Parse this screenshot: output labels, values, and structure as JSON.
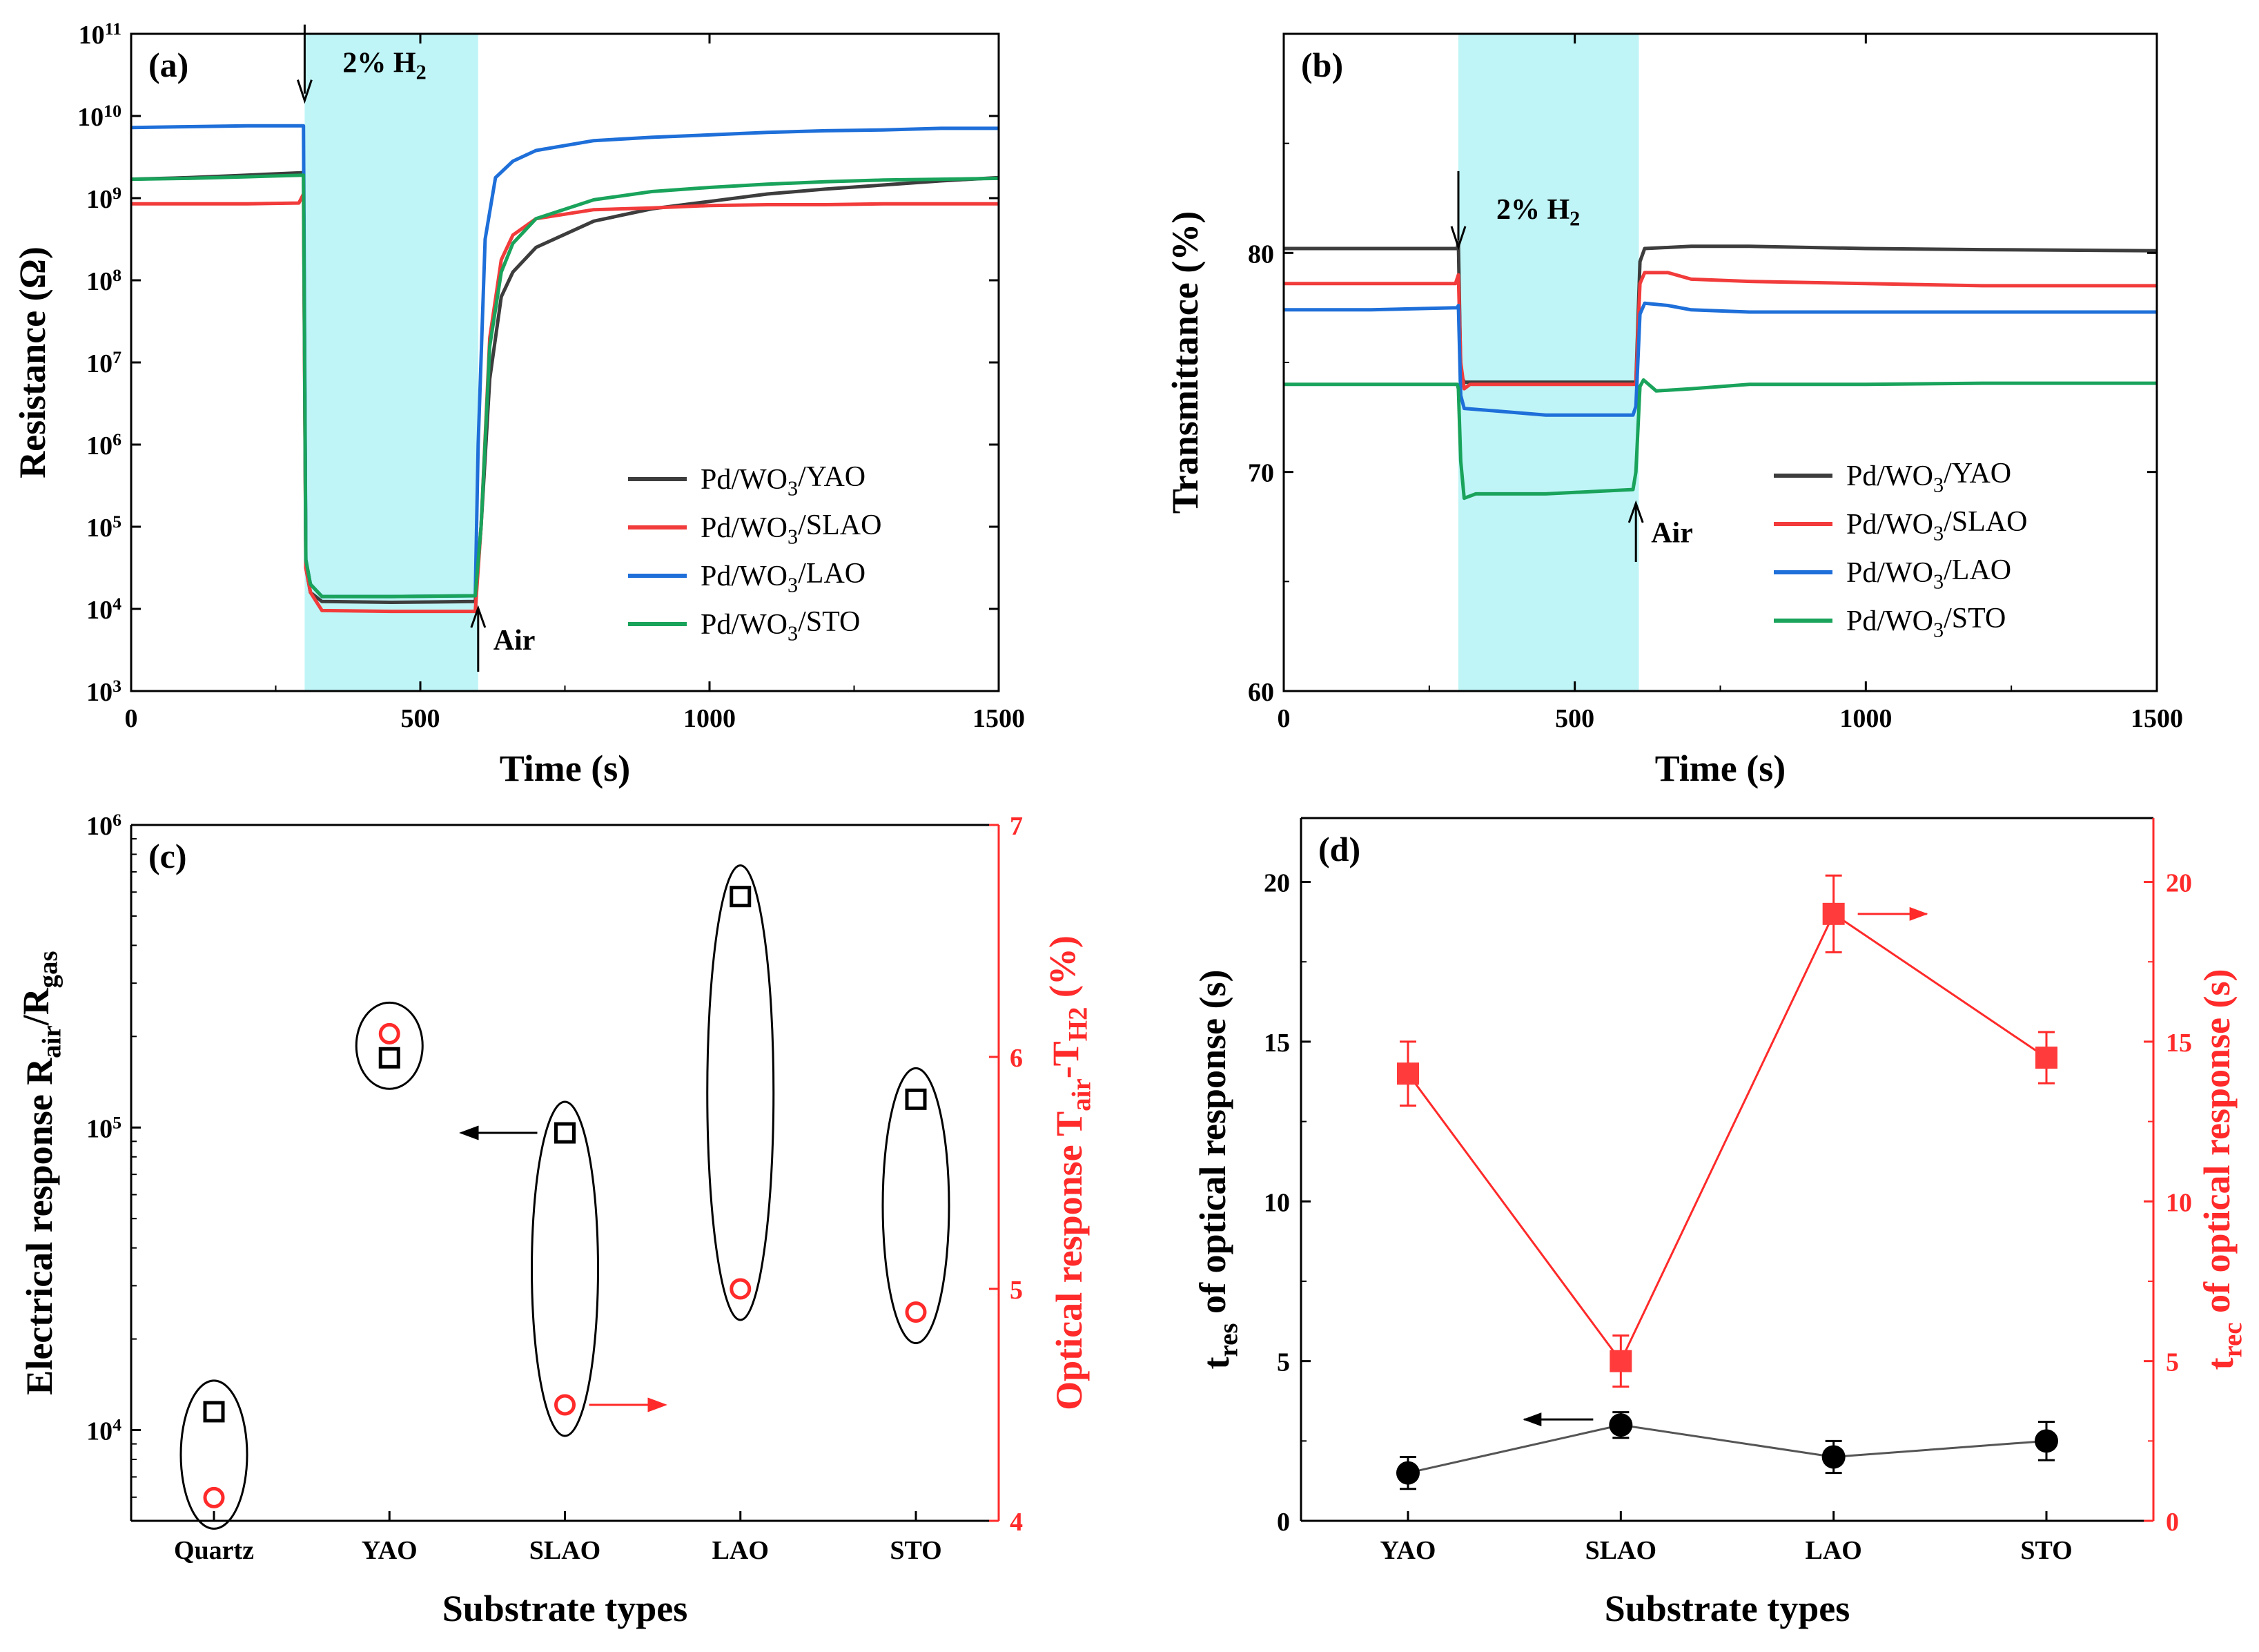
{
  "figure": {
    "panels": [
      "(a)",
      "(b)",
      "(c)",
      "(d)"
    ]
  },
  "chart_data": [
    {
      "id": "a",
      "type": "line",
      "label": "(a)",
      "xlabel": "Time (s)",
      "ylabel": "Resistance (Ω)",
      "xlim": [
        0,
        1500
      ],
      "xticks": [
        0,
        500,
        1000,
        1500
      ],
      "yscale": "log",
      "ylim_log10": [
        3,
        11
      ],
      "yticks": [
        {
          "base": "10",
          "exp": "3",
          "v": 3
        },
        {
          "base": "10",
          "exp": "4",
          "v": 4
        },
        {
          "base": "10",
          "exp": "5",
          "v": 5
        },
        {
          "base": "10",
          "exp": "6",
          "v": 6
        },
        {
          "base": "10",
          "exp": "7",
          "v": 7
        },
        {
          "base": "10",
          "exp": "8",
          "v": 8
        },
        {
          "base": "10",
          "exp": "9",
          "v": 9
        },
        {
          "base": "10",
          "exp": "10",
          "v": 10
        },
        {
          "base": "10",
          "exp": "11",
          "v": 11
        }
      ],
      "shaded_region": [
        300,
        600
      ],
      "gas_label": {
        "text": "2% H",
        "sub": "2",
        "x": 300,
        "y_log10": 10.65
      },
      "air_label": {
        "text": "Air",
        "x": 600
      },
      "legend_title": "",
      "series": [
        {
          "name": "Pd/WO3/YAO",
          "legend": {
            "pre": "Pd/WO",
            "sub": "3",
            "post": "/YAO"
          },
          "color": "#3d3d3d",
          "points": [
            [
              0,
              9.23
            ],
            [
              100,
              9.25
            ],
            [
              200,
              9.28
            ],
            [
              298,
              9.31
            ],
            [
              302,
              4.5
            ],
            [
              310,
              4.2
            ],
            [
              330,
              4.09
            ],
            [
              450,
              4.08
            ],
            [
              595,
              4.09
            ],
            [
              605,
              5.0
            ],
            [
              620,
              6.8
            ],
            [
              640,
              7.8
            ],
            [
              660,
              8.1
            ],
            [
              700,
              8.4
            ],
            [
              800,
              8.72
            ],
            [
              900,
              8.87
            ],
            [
              1000,
              8.96
            ],
            [
              1100,
              9.05
            ],
            [
              1200,
              9.11
            ],
            [
              1300,
              9.16
            ],
            [
              1400,
              9.21
            ],
            [
              1500,
              9.25
            ]
          ]
        },
        {
          "name": "Pd/WO3/SLAO",
          "legend": {
            "pre": "Pd/WO",
            "sub": "3",
            "post": "/SLAO"
          },
          "color": "#f23b3b",
          "points": [
            [
              0,
              8.93
            ],
            [
              100,
              8.93
            ],
            [
              200,
              8.93
            ],
            [
              290,
              8.94
            ],
            [
              298,
              9.05
            ],
            [
              302,
              4.5
            ],
            [
              310,
              4.2
            ],
            [
              330,
              3.98
            ],
            [
              450,
              3.97
            ],
            [
              595,
              3.97
            ],
            [
              605,
              5.0
            ],
            [
              620,
              7.3
            ],
            [
              640,
              8.25
            ],
            [
              660,
              8.55
            ],
            [
              700,
              8.75
            ],
            [
              800,
              8.86
            ],
            [
              900,
              8.88
            ],
            [
              1000,
              8.91
            ],
            [
              1100,
              8.92
            ],
            [
              1200,
              8.92
            ],
            [
              1300,
              8.93
            ],
            [
              1400,
              8.93
            ],
            [
              1500,
              8.93
            ]
          ]
        },
        {
          "name": "Pd/WO3/LAO",
          "legend": {
            "pre": "Pd/WO",
            "sub": "3",
            "post": "/LAO"
          },
          "color": "#1e6fd9",
          "points": [
            [
              0,
              9.86
            ],
            [
              100,
              9.87
            ],
            [
              200,
              9.88
            ],
            [
              298,
              9.88
            ],
            [
              302,
              4.6
            ],
            [
              310,
              4.3
            ],
            [
              330,
              4.15
            ],
            [
              450,
              4.15
            ],
            [
              595,
              4.16
            ],
            [
              600,
              6.0
            ],
            [
              612,
              8.5
            ],
            [
              630,
              9.25
            ],
            [
              660,
              9.45
            ],
            [
              700,
              9.58
            ],
            [
              800,
              9.7
            ],
            [
              900,
              9.74
            ],
            [
              1000,
              9.77
            ],
            [
              1100,
              9.8
            ],
            [
              1200,
              9.82
            ],
            [
              1300,
              9.83
            ],
            [
              1400,
              9.85
            ],
            [
              1500,
              9.85
            ]
          ]
        },
        {
          "name": "Pd/WO3/STO",
          "legend": {
            "pre": "Pd/WO",
            "sub": "3",
            "post": "/STO"
          },
          "color": "#19a35b",
          "points": [
            [
              0,
              9.23
            ],
            [
              100,
              9.24
            ],
            [
              200,
              9.26
            ],
            [
              298,
              9.28
            ],
            [
              302,
              4.6
            ],
            [
              310,
              4.3
            ],
            [
              330,
              4.15
            ],
            [
              450,
              4.15
            ],
            [
              595,
              4.16
            ],
            [
              605,
              5.0
            ],
            [
              620,
              7.2
            ],
            [
              640,
              8.1
            ],
            [
              660,
              8.45
            ],
            [
              700,
              8.75
            ],
            [
              800,
              8.98
            ],
            [
              900,
              9.08
            ],
            [
              1000,
              9.13
            ],
            [
              1100,
              9.17
            ],
            [
              1200,
              9.2
            ],
            [
              1300,
              9.22
            ],
            [
              1400,
              9.23
            ],
            [
              1500,
              9.24
            ]
          ]
        }
      ]
    },
    {
      "id": "b",
      "type": "line",
      "label": "(b)",
      "xlabel": "Time (s)",
      "ylabel": "Transmittance (%)",
      "xlim": [
        0,
        1500
      ],
      "xticks": [
        0,
        500,
        1000,
        1500
      ],
      "ylim": [
        60,
        90
      ],
      "yticks": [
        60,
        70,
        80
      ],
      "shaded_region": [
        300,
        610
      ],
      "gas_label": {
        "text": "2% H",
        "sub": "2",
        "x": 300,
        "y": 82.0
      },
      "air_label": {
        "text": "Air",
        "x": 605
      },
      "series": [
        {
          "name": "Pd/WO3/YAO",
          "legend": {
            "pre": "Pd/WO",
            "sub": "3",
            "post": "/YAO"
          },
          "color": "#3d3d3d",
          "points": [
            [
              0,
              80.2
            ],
            [
              150,
              80.2
            ],
            [
              298,
              80.2
            ],
            [
              300,
              80.5
            ],
            [
              304,
              74.5
            ],
            [
              310,
              74.1
            ],
            [
              450,
              74.1
            ],
            [
              605,
              74.1
            ],
            [
              612,
              79.6
            ],
            [
              620,
              80.2
            ],
            [
              700,
              80.3
            ],
            [
              800,
              80.3
            ],
            [
              1000,
              80.2
            ],
            [
              1200,
              80.15
            ],
            [
              1500,
              80.1
            ]
          ]
        },
        {
          "name": "Pd/WO3/SLAO",
          "legend": {
            "pre": "Pd/WO",
            "sub": "3",
            "post": "/SLAO"
          },
          "color": "#f23b3b",
          "points": [
            [
              0,
              78.6
            ],
            [
              150,
              78.6
            ],
            [
              295,
              78.6
            ],
            [
              300,
              79.0
            ],
            [
              304,
              75.0
            ],
            [
              310,
              73.8
            ],
            [
              320,
              74.0
            ],
            [
              450,
              74.0
            ],
            [
              605,
              74.0
            ],
            [
              612,
              78.6
            ],
            [
              620,
              79.1
            ],
            [
              660,
              79.1
            ],
            [
              700,
              78.8
            ],
            [
              800,
              78.7
            ],
            [
              1000,
              78.6
            ],
            [
              1200,
              78.5
            ],
            [
              1500,
              78.5
            ]
          ]
        },
        {
          "name": "Pd/WO3/LAO",
          "legend": {
            "pre": "Pd/WO",
            "sub": "3",
            "post": "/LAO"
          },
          "color": "#1e6fd9",
          "points": [
            [
              0,
              77.4
            ],
            [
              150,
              77.4
            ],
            [
              298,
              77.5
            ],
            [
              300,
              77.6
            ],
            [
              304,
              73.5
            ],
            [
              310,
              72.9
            ],
            [
              450,
              72.6
            ],
            [
              600,
              72.6
            ],
            [
              605,
              73.0
            ],
            [
              612,
              77.2
            ],
            [
              620,
              77.7
            ],
            [
              660,
              77.6
            ],
            [
              700,
              77.4
            ],
            [
              800,
              77.3
            ],
            [
              1000,
              77.3
            ],
            [
              1200,
              77.3
            ],
            [
              1500,
              77.3
            ]
          ]
        },
        {
          "name": "Pd/WO3/STO",
          "legend": {
            "pre": "Pd/WO",
            "sub": "3",
            "post": "/STO"
          },
          "color": "#19a35b",
          "points": [
            [
              0,
              74.0
            ],
            [
              150,
              74.0
            ],
            [
              298,
              74.0
            ],
            [
              300,
              73.8
            ],
            [
              304,
              70.5
            ],
            [
              310,
              68.8
            ],
            [
              330,
              69.0
            ],
            [
              450,
              69.0
            ],
            [
              600,
              69.2
            ],
            [
              605,
              70.0
            ],
            [
              612,
              73.9
            ],
            [
              618,
              74.2
            ],
            [
              640,
              73.7
            ],
            [
              700,
              73.8
            ],
            [
              800,
              74.0
            ],
            [
              1000,
              74.0
            ],
            [
              1200,
              74.05
            ],
            [
              1500,
              74.05
            ]
          ]
        }
      ]
    },
    {
      "id": "c",
      "type": "scatter",
      "label": "(c)",
      "xlabel": "Substrate types",
      "categories": [
        "Quartz",
        "YAO",
        "SLAO",
        "LAO",
        "STO"
      ],
      "ylabel_left": {
        "pre": "Electrical response R",
        "sub1": "air",
        "mid": "/R",
        "sub2": "gas"
      },
      "ylabel_right": {
        "pre": "Optical response T",
        "sub1": "air",
        "mid": "-T",
        "sub2": "H2",
        "post": " (%)"
      },
      "left_scale": "log",
      "left_ylim_log10": [
        3.7,
        6.0
      ],
      "left_yticks": [
        {
          "base": "10",
          "exp": "4",
          "v": 4
        },
        {
          "base": "10",
          "exp": "5",
          "v": 5
        },
        {
          "base": "10",
          "exp": "6",
          "v": 6
        }
      ],
      "right_ylim": [
        4,
        7
      ],
      "right_yticks": [
        4,
        5,
        6,
        7
      ],
      "series": [
        {
          "name": "Electrical response",
          "axis": "left",
          "marker": "square-open",
          "color": "#000000",
          "values": [
            11500,
            170000,
            96000,
            580000,
            124000
          ]
        },
        {
          "name": "Optical response",
          "axis": "right",
          "marker": "circle-open",
          "color": "#ff2a2a",
          "values": [
            4.1,
            6.1,
            4.5,
            5.0,
            4.9
          ]
        }
      ]
    },
    {
      "id": "d",
      "type": "line",
      "label": "(d)",
      "xlabel": "Substrate types",
      "categories": [
        "YAO",
        "SLAO",
        "LAO",
        "STO"
      ],
      "ylabel_left": {
        "pre": "t",
        "sub": "res",
        "post": " of optical response (s)"
      },
      "ylabel_right": {
        "pre": "t",
        "sub": "rec",
        "post": " of optical response (s)"
      },
      "left_ylim": [
        0,
        22
      ],
      "left_yticks": [
        0,
        5,
        10,
        15,
        20
      ],
      "right_ylim": [
        0,
        22
      ],
      "right_yticks": [
        0,
        5,
        10,
        15,
        20
      ],
      "series": [
        {
          "name": "t_res",
          "axis": "left",
          "marker": "circle-filled",
          "color": "#000000",
          "values": [
            1.5,
            3.0,
            2.0,
            2.5
          ],
          "errors": [
            0.5,
            0.4,
            0.5,
            0.6
          ]
        },
        {
          "name": "t_rec",
          "axis": "right",
          "marker": "square-filled",
          "color": "#ff2a2a",
          "values": [
            14.0,
            5.0,
            19.0,
            14.5
          ],
          "errors": [
            1.0,
            0.8,
            1.2,
            0.8
          ]
        }
      ]
    }
  ]
}
